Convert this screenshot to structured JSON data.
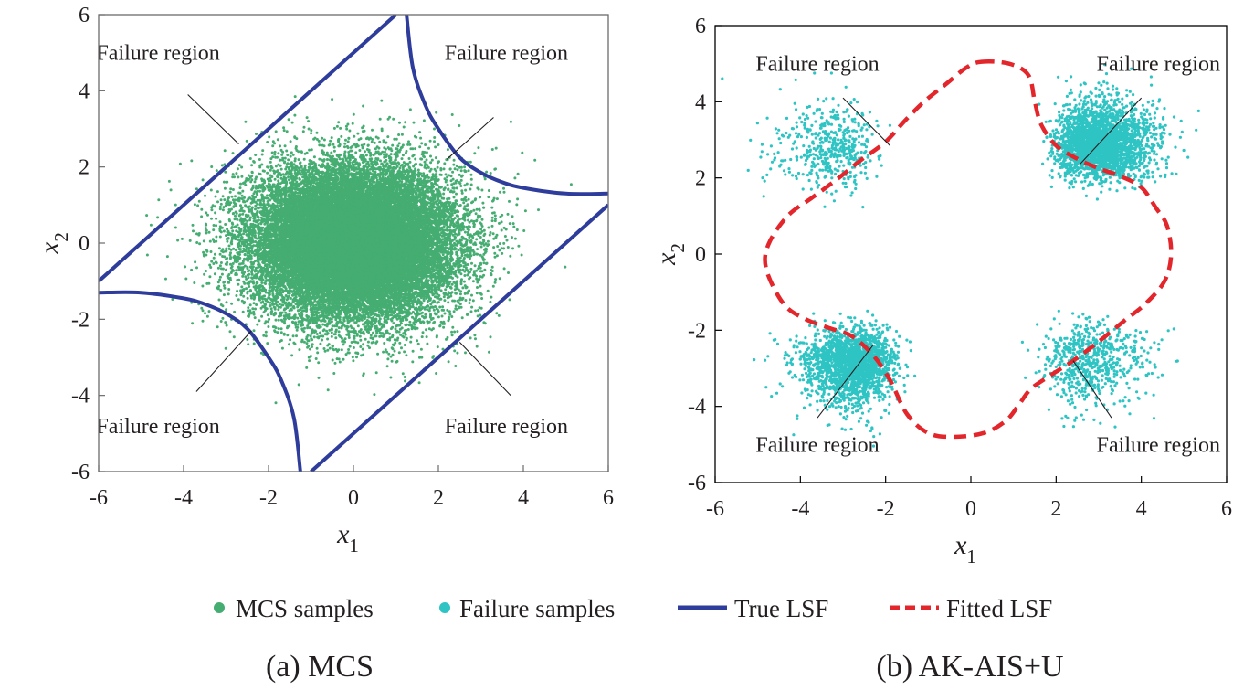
{
  "chart_data": [
    {
      "type": "scatter",
      "caption": "(a) MCS",
      "xlabel": "x",
      "xlabel_sub": "1",
      "ylabel": "x",
      "ylabel_sub": "2",
      "xlim": [
        -6,
        6
      ],
      "ylim": [
        -6,
        6
      ],
      "xticks": [
        "-6",
        "-4",
        "-2",
        "0",
        "2",
        "4",
        "6"
      ],
      "yticks": [
        "-6",
        "-4",
        "-2",
        "0",
        "2",
        "4",
        "6"
      ],
      "annotations": [
        {
          "text": "Failure region",
          "anchor": [
            -4.6,
            5.0
          ],
          "pointer": [
            [
              -3.9,
              3.9
            ],
            [
              -2.7,
              2.6
            ]
          ]
        },
        {
          "text": "Failure region",
          "anchor": [
            3.6,
            5.0
          ],
          "pointer": [
            [
              3.3,
              3.3
            ],
            [
              2.2,
              2.2
            ]
          ]
        },
        {
          "text": "Failure region",
          "anchor": [
            -4.6,
            -4.8
          ],
          "pointer": [
            [
              -3.7,
              -3.9
            ],
            [
              -2.4,
              -2.3
            ]
          ]
        },
        {
          "text": "Failure region",
          "anchor": [
            3.6,
            -4.8
          ],
          "pointer": [
            [
              3.7,
              -4.0
            ],
            [
              2.5,
              -2.6
            ]
          ]
        }
      ],
      "series": [
        {
          "name": "MCS samples",
          "kind": "gaussian-cloud",
          "color": "#45ad71",
          "mean": [
            0,
            0
          ],
          "std": [
            1.18,
            1.0
          ],
          "count": 26000
        },
        {
          "name": "True LSF",
          "kind": "line",
          "color": "#2e3d9c",
          "curves": [
            {
              "x": [
                -6,
                -3,
                0,
                1.0
              ],
              "y": [
                -1.0,
                2.0,
                5.0,
                6.0
              ]
            },
            {
              "x": [
                -1.0,
                2.0,
                5.0,
                6.0
              ],
              "y": [
                -6,
                -3,
                0,
                1.0
              ]
            },
            {
              "x": [
                1.25,
                1.4,
                1.7,
                2.0,
                2.5,
                3.0,
                3.5,
                4.0,
                5.0,
                6.0
              ],
              "y": [
                6.0,
                4.6,
                3.6,
                3.0,
                2.25,
                1.85,
                1.6,
                1.45,
                1.3,
                1.3
              ]
            },
            {
              "x": [
                -1.25,
                -1.4,
                -1.7,
                -2.0,
                -2.5,
                -3.0,
                -3.5,
                -4.0,
                -5.0,
                -6.0
              ],
              "y": [
                -6.0,
                -4.6,
                -3.6,
                -3.0,
                -2.25,
                -1.85,
                -1.6,
                -1.45,
                -1.3,
                -1.3
              ]
            }
          ]
        }
      ]
    },
    {
      "type": "scatter",
      "caption": "(b) AK-AIS+U",
      "xlabel": "x",
      "xlabel_sub": "1",
      "ylabel": "x",
      "ylabel_sub": "2",
      "xlim": [
        -6,
        6
      ],
      "ylim": [
        -6,
        6
      ],
      "xticks": [
        "-6",
        "-4",
        "-2",
        "0",
        "2",
        "4",
        "6"
      ],
      "yticks": [
        "-6",
        "-4",
        "-2",
        "0",
        "2",
        "4",
        "6"
      ],
      "annotations": [
        {
          "text": "Failure region",
          "anchor": [
            -3.6,
            5.0
          ],
          "pointer": [
            [
              -3.0,
              4.1
            ],
            [
              -1.9,
              2.85
            ]
          ]
        },
        {
          "text": "Failure region",
          "anchor": [
            4.4,
            5.0
          ],
          "pointer": [
            [
              4.0,
              4.1
            ],
            [
              2.55,
              2.35
            ]
          ]
        },
        {
          "text": "Failure region",
          "anchor": [
            -3.6,
            -5.0
          ],
          "pointer": [
            [
              -3.6,
              -4.3
            ],
            [
              -2.3,
              -2.4
            ]
          ]
        },
        {
          "text": "Failure region",
          "anchor": [
            4.4,
            -5.0
          ],
          "pointer": [
            [
              3.3,
              -4.3
            ],
            [
              2.4,
              -2.8
            ]
          ]
        }
      ],
      "series": [
        {
          "name": "Failure samples",
          "kind": "clusters",
          "color": "#2ec4c4",
          "clusters": [
            {
              "center": [
                2.85,
                2.75
              ],
              "spread": [
                0.75,
                0.6
              ],
              "count": 2600
            },
            {
              "center": [
                -2.6,
                -2.75
              ],
              "spread": [
                0.7,
                0.6
              ],
              "count": 2000
            },
            {
              "center": [
                -3.1,
                2.6
              ],
              "spread": [
                0.8,
                0.75
              ],
              "count": 500
            },
            {
              "center": [
                2.6,
                -2.65
              ],
              "spread": [
                0.8,
                0.7
              ],
              "count": 650
            }
          ]
        },
        {
          "name": "Fitted LSF",
          "kind": "dashed-line",
          "color": "#e3262b",
          "x": [
            0.25,
            0.9,
            1.35,
            1.5,
            1.65,
            2.0,
            2.5,
            3.0,
            3.5,
            4.0,
            4.35,
            4.6,
            4.7,
            4.55,
            4.1,
            3.6,
            3.0,
            2.4,
            1.85,
            1.4,
            1.1,
            0.8,
            0.3,
            -0.4,
            -1.0,
            -1.5,
            -1.9,
            -2.3,
            -2.8,
            -3.3,
            -3.9,
            -4.4,
            -4.8,
            -4.75,
            -4.3,
            -3.7,
            -3.1,
            -2.6,
            -2.0,
            -1.55,
            -1.1,
            -0.6,
            -0.1,
            0.25
          ],
          "y": [
            5.05,
            5.0,
            4.7,
            4.0,
            3.4,
            2.85,
            2.5,
            2.25,
            2.05,
            1.75,
            1.2,
            0.75,
            0.0,
            -0.7,
            -1.3,
            -1.75,
            -2.3,
            -2.8,
            -3.2,
            -3.55,
            -4.0,
            -4.4,
            -4.7,
            -4.8,
            -4.7,
            -4.2,
            -3.3,
            -2.65,
            -2.15,
            -1.95,
            -1.7,
            -1.3,
            -0.4,
            0.25,
            1.0,
            1.5,
            2.0,
            2.45,
            2.95,
            3.5,
            4.0,
            4.45,
            4.9,
            5.05
          ]
        }
      ]
    }
  ],
  "legend": {
    "position": "bottom",
    "items": [
      {
        "label": "MCS samples",
        "kind": "dot",
        "color": "#45ad71"
      },
      {
        "label": "Failure samples",
        "kind": "dot",
        "color": "#2ec4c4"
      },
      {
        "label": "True LSF",
        "kind": "line",
        "color": "#2e3d9c"
      },
      {
        "label": "Fitted LSF",
        "kind": "dash",
        "color": "#e3262b"
      }
    ]
  }
}
